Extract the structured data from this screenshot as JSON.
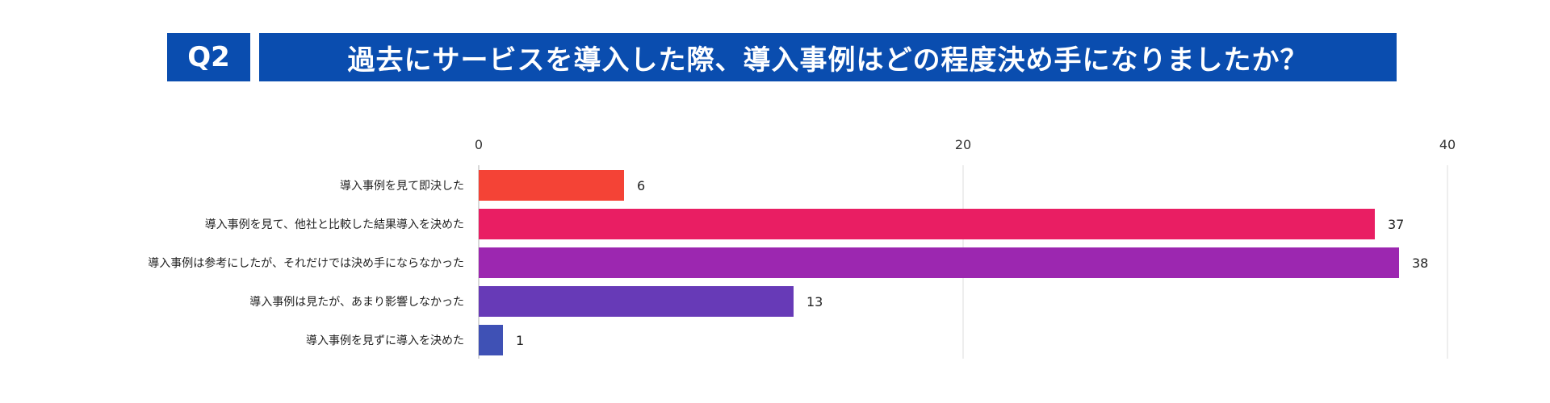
{
  "header": {
    "badge": "Q2",
    "question": "過去にサービスを導入した際、導入事例はどの程度決め手になりましたか？",
    "color": "#0a4daf"
  },
  "chart_data": {
    "type": "bar",
    "orientation": "horizontal",
    "title": "",
    "xlabel": "",
    "ylabel": "",
    "xlim": [
      0,
      40
    ],
    "xticks": [
      0,
      20,
      40
    ],
    "grid": true,
    "legend": "none",
    "categories": [
      "導入事例を見て即決した",
      "導入事例を見て、他社と比較した結果導入を決めた",
      "導入事例は参考にしたが、それだけでは決め手にならなかった",
      "導入事例は見たが、あまり影響しなかった",
      "導入事例を見ずに導入を決めた"
    ],
    "values": [
      6,
      37,
      38,
      13,
      1
    ],
    "colors": [
      "#f44336",
      "#e91e63",
      "#9c27b0",
      "#673ab7",
      "#3f51b5"
    ]
  }
}
